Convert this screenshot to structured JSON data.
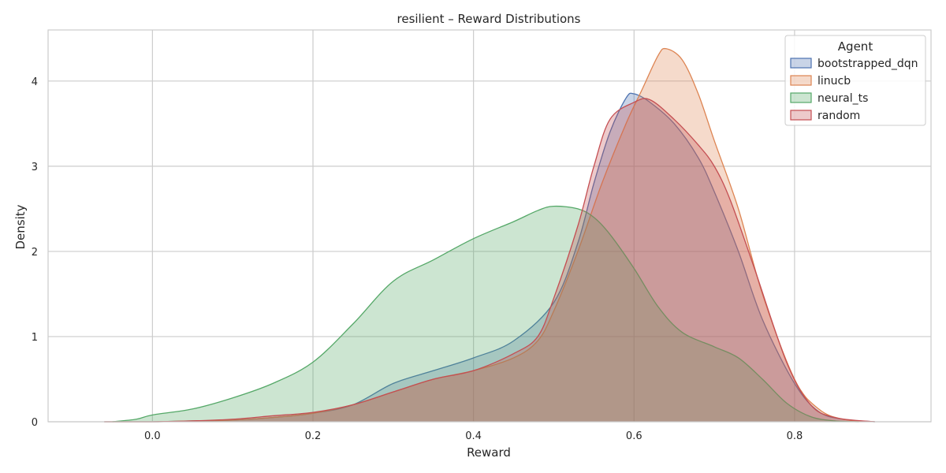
{
  "chart_data": {
    "type": "area",
    "title": "resilient – Reward Distributions",
    "xlabel": "Reward",
    "ylabel": "Density",
    "xlim": [
      -0.13,
      0.97
    ],
    "ylim": [
      0,
      4.6
    ],
    "xticks": [
      0.0,
      0.2,
      0.4,
      0.6,
      0.8
    ],
    "xtick_labels": [
      "0.0",
      "0.2",
      "0.4",
      "0.6",
      "0.8"
    ],
    "yticks": [
      0,
      1,
      2,
      3,
      4
    ],
    "ytick_labels": [
      "0",
      "1",
      "2",
      "3",
      "4"
    ],
    "grid": true,
    "legend": {
      "title": "Agent",
      "placement": "top-right"
    },
    "series": [
      {
        "name": "bootstrapped_dqn",
        "color": "#4c72b0",
        "points": [
          [
            -0.06,
            0
          ],
          [
            0.0,
            0.0
          ],
          [
            0.05,
            0.01
          ],
          [
            0.1,
            0.02
          ],
          [
            0.15,
            0.05
          ],
          [
            0.2,
            0.1
          ],
          [
            0.25,
            0.2
          ],
          [
            0.3,
            0.45
          ],
          [
            0.35,
            0.6
          ],
          [
            0.4,
            0.75
          ],
          [
            0.45,
            0.95
          ],
          [
            0.5,
            1.4
          ],
          [
            0.53,
            2.1
          ],
          [
            0.55,
            2.8
          ],
          [
            0.57,
            3.4
          ],
          [
            0.59,
            3.8
          ],
          [
            0.6,
            3.85
          ],
          [
            0.62,
            3.75
          ],
          [
            0.65,
            3.5
          ],
          [
            0.68,
            3.1
          ],
          [
            0.7,
            2.7
          ],
          [
            0.73,
            2.0
          ],
          [
            0.76,
            1.2
          ],
          [
            0.8,
            0.45
          ],
          [
            0.83,
            0.12
          ],
          [
            0.86,
            0.03
          ],
          [
            0.9,
            0
          ]
        ]
      },
      {
        "name": "linucb",
        "color": "#dd8452",
        "points": [
          [
            -0.06,
            0
          ],
          [
            0.0,
            0.0
          ],
          [
            0.05,
            0.01
          ],
          [
            0.1,
            0.02
          ],
          [
            0.15,
            0.05
          ],
          [
            0.2,
            0.1
          ],
          [
            0.25,
            0.2
          ],
          [
            0.3,
            0.35
          ],
          [
            0.35,
            0.5
          ],
          [
            0.4,
            0.6
          ],
          [
            0.45,
            0.75
          ],
          [
            0.48,
            0.95
          ],
          [
            0.5,
            1.3
          ],
          [
            0.53,
            2.0
          ],
          [
            0.56,
            2.8
          ],
          [
            0.59,
            3.5
          ],
          [
            0.61,
            3.9
          ],
          [
            0.63,
            4.3
          ],
          [
            0.64,
            4.38
          ],
          [
            0.66,
            4.25
          ],
          [
            0.68,
            3.85
          ],
          [
            0.7,
            3.3
          ],
          [
            0.73,
            2.5
          ],
          [
            0.76,
            1.5
          ],
          [
            0.8,
            0.5
          ],
          [
            0.83,
            0.15
          ],
          [
            0.86,
            0.03
          ],
          [
            0.9,
            0
          ]
        ]
      },
      {
        "name": "neural_ts",
        "color": "#55a868",
        "points": [
          [
            -0.05,
            0
          ],
          [
            -0.02,
            0.03
          ],
          [
            0.0,
            0.08
          ],
          [
            0.05,
            0.15
          ],
          [
            0.1,
            0.28
          ],
          [
            0.15,
            0.45
          ],
          [
            0.2,
            0.7
          ],
          [
            0.25,
            1.15
          ],
          [
            0.3,
            1.65
          ],
          [
            0.35,
            1.9
          ],
          [
            0.4,
            2.15
          ],
          [
            0.45,
            2.35
          ],
          [
            0.48,
            2.48
          ],
          [
            0.5,
            2.53
          ],
          [
            0.53,
            2.5
          ],
          [
            0.55,
            2.4
          ],
          [
            0.57,
            2.2
          ],
          [
            0.6,
            1.8
          ],
          [
            0.63,
            1.35
          ],
          [
            0.66,
            1.05
          ],
          [
            0.7,
            0.88
          ],
          [
            0.73,
            0.75
          ],
          [
            0.76,
            0.5
          ],
          [
            0.79,
            0.22
          ],
          [
            0.82,
            0.06
          ],
          [
            0.85,
            0.01
          ],
          [
            0.88,
            0
          ]
        ]
      },
      {
        "name": "random",
        "color": "#c44e52",
        "points": [
          [
            -0.06,
            0
          ],
          [
            0.0,
            0.0
          ],
          [
            0.05,
            0.01
          ],
          [
            0.1,
            0.03
          ],
          [
            0.15,
            0.07
          ],
          [
            0.2,
            0.11
          ],
          [
            0.25,
            0.2
          ],
          [
            0.3,
            0.35
          ],
          [
            0.35,
            0.5
          ],
          [
            0.4,
            0.6
          ],
          [
            0.45,
            0.8
          ],
          [
            0.48,
            1.0
          ],
          [
            0.5,
            1.45
          ],
          [
            0.53,
            2.3
          ],
          [
            0.55,
            3.0
          ],
          [
            0.57,
            3.55
          ],
          [
            0.6,
            3.75
          ],
          [
            0.62,
            3.78
          ],
          [
            0.65,
            3.55
          ],
          [
            0.68,
            3.25
          ],
          [
            0.7,
            3.0
          ],
          [
            0.72,
            2.6
          ],
          [
            0.75,
            1.8
          ],
          [
            0.79,
            0.7
          ],
          [
            0.82,
            0.2
          ],
          [
            0.85,
            0.05
          ],
          [
            0.9,
            0
          ]
        ]
      }
    ]
  }
}
